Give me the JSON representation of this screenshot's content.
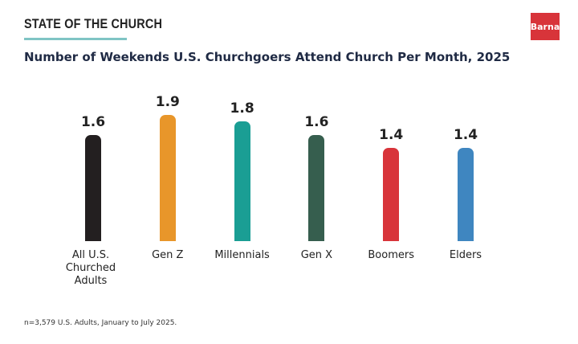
{
  "header": "STATE OF THE CHURCH",
  "logo": "Barna",
  "note": "n=3,579 U.S. Adults, January to July 2025.",
  "chart_data": {
    "type": "bar",
    "title": "Number of Weekends U.S. Churchgoers Attend Church Per Month, 2025",
    "categories": [
      "All U.S. Churched Adults",
      "Gen Z",
      "Millennials",
      "Gen X",
      "Boomers",
      "Elders"
    ],
    "values": [
      1.6,
      1.9,
      1.8,
      1.6,
      1.4,
      1.4
    ],
    "colors": [
      "#231f20",
      "#e8962a",
      "#1a9e94",
      "#365e4e",
      "#d8343a",
      "#3f86c0"
    ]
  }
}
